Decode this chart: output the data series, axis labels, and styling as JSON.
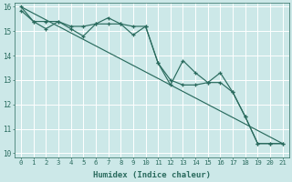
{
  "xlabel": "Humidex (Indice chaleur)",
  "xlim": [
    -0.5,
    21.5
  ],
  "ylim": [
    9.85,
    16.15
  ],
  "yticks": [
    10,
    11,
    12,
    13,
    14,
    15,
    16
  ],
  "xticks": [
    0,
    1,
    2,
    3,
    4,
    5,
    6,
    7,
    8,
    9,
    10,
    11,
    12,
    13,
    14,
    15,
    16,
    17,
    18,
    19,
    20,
    21
  ],
  "bg_color": "#cce8e8",
  "grid_color": "#ffffff",
  "line_color": "#2a6b5e",
  "line1_y": [
    16.0,
    15.4,
    15.1,
    15.4,
    15.1,
    14.8,
    15.3,
    15.55,
    15.3,
    14.85,
    15.2,
    13.7,
    12.8,
    13.8,
    13.3,
    12.9,
    13.3,
    12.5,
    11.5,
    10.4,
    10.4,
    10.4
  ],
  "line2_y": [
    15.85,
    15.4,
    15.4,
    15.4,
    15.2,
    15.2,
    15.3,
    15.3,
    15.3,
    15.2,
    15.2,
    13.7,
    13.0,
    12.8,
    12.8,
    12.9,
    12.9,
    12.5,
    11.5,
    10.4,
    10.4,
    10.4
  ],
  "line3_x": [
    0,
    21
  ],
  "line3_y": [
    16.0,
    10.4
  ],
  "xlabel_fontsize": 6.5,
  "tick_fontsize": 5.2
}
